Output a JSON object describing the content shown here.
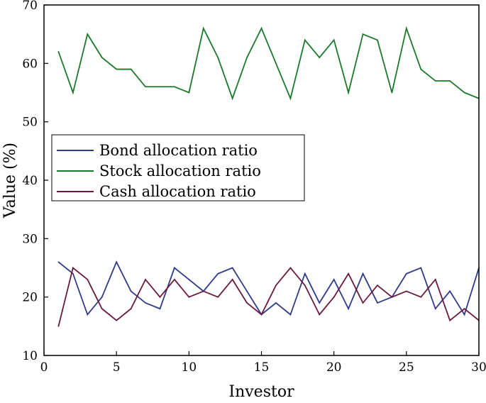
{
  "chart_data": {
    "type": "line",
    "xlabel": "Investor",
    "ylabel": "Value (%)",
    "xlim": [
      0,
      30
    ],
    "ylim": [
      10,
      70
    ],
    "x_ticks": [
      0,
      5,
      10,
      15,
      20,
      25,
      30
    ],
    "y_ticks": [
      10,
      20,
      30,
      40,
      50,
      60,
      70
    ],
    "grid": false,
    "legend_position": "middle-left",
    "x": [
      1,
      2,
      3,
      4,
      5,
      6,
      7,
      8,
      9,
      10,
      11,
      12,
      13,
      14,
      15,
      16,
      17,
      18,
      19,
      20,
      21,
      22,
      23,
      24,
      25,
      26,
      27,
      28,
      29,
      30
    ],
    "series": [
      {
        "name": "Bond allocation ratio",
        "color": "#2e3a8c",
        "values": [
          26,
          24,
          17,
          20,
          26,
          21,
          19,
          18,
          25,
          23,
          21,
          24,
          25,
          21,
          17,
          19,
          17,
          24,
          19,
          23,
          18,
          24,
          19,
          20,
          24,
          25,
          18,
          21,
          17,
          25
        ]
      },
      {
        "name": "Stock allocation ratio",
        "color": "#1b7a2a",
        "values": [
          62,
          55,
          65,
          61,
          59,
          59,
          56,
          56,
          56,
          55,
          66,
          61,
          54,
          61,
          66,
          60,
          54,
          64,
          61,
          64,
          55,
          65,
          64,
          55,
          66,
          59,
          57,
          57,
          55,
          54
        ]
      },
      {
        "name": "Cash allocation ratio",
        "color": "#6b1a3e",
        "values": [
          15,
          25,
          23,
          18,
          16,
          18,
          23,
          20,
          23,
          20,
          21,
          20,
          23,
          19,
          17,
          22,
          25,
          22,
          17,
          20,
          24,
          19,
          22,
          20,
          21,
          20,
          23,
          16,
          18,
          16
        ]
      }
    ]
  }
}
